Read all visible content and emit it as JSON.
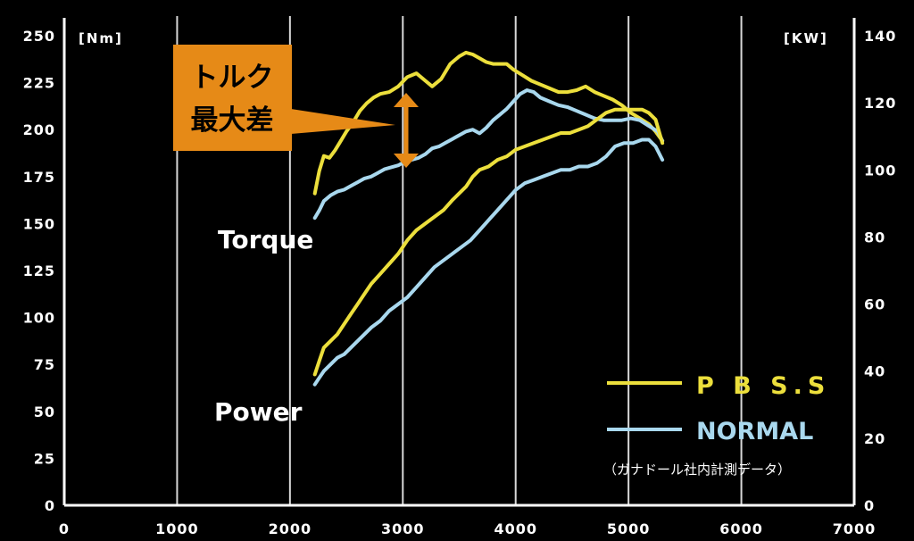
{
  "chart_data": {
    "type": "line",
    "x_ticks": [
      "0",
      "1000",
      "2000",
      "3000",
      "4000",
      "5000",
      "6000",
      "7000"
    ],
    "y_left_ticks": [
      "0",
      "25",
      "50",
      "75",
      "100",
      "125",
      "150",
      "175",
      "200",
      "225",
      "250"
    ],
    "y_right_ticks": [
      "0",
      "20",
      "40",
      "60",
      "80",
      "100",
      "120",
      "140"
    ],
    "y_left_unit": "[Nm]",
    "y_right_unit": "[KW]",
    "xlim": [
      0,
      7000
    ],
    "ylim_left": [
      0,
      250
    ],
    "ylim_right": [
      0,
      140
    ],
    "grid": "vertical",
    "legend_position": "bottom-right",
    "curve_labels": {
      "torque": "Torque",
      "power": "Power"
    },
    "callout": {
      "line1": "トルク",
      "line2": "最大差"
    },
    "note": "（ガナドール社内計測データ）",
    "series": [
      {
        "name": "P B S.S",
        "color": "#ecdf3c",
        "axis": "left",
        "group": "torque",
        "x": [
          2220,
          2260,
          2300,
          2350,
          2400,
          2450,
          2500,
          2560,
          2620,
          2680,
          2740,
          2800,
          2880,
          2960,
          3040,
          3120,
          3200,
          3260,
          3340,
          3420,
          3500,
          3560,
          3620,
          3680,
          3740,
          3800,
          3860,
          3920,
          3980,
          4060,
          4140,
          4220,
          4300,
          4380,
          4460,
          4540,
          4620,
          4700,
          4780,
          4860,
          4940,
          5020,
          5100,
          5180,
          5240,
          5300
        ],
        "y": [
          166,
          178,
          186,
          185,
          189,
          194,
          199,
          204,
          210,
          214,
          217,
          219,
          220,
          223,
          228,
          230,
          226,
          223,
          227,
          235,
          239,
          241,
          240,
          238,
          236,
          235,
          235,
          235,
          232,
          229,
          226,
          224,
          222,
          220,
          220,
          221,
          223,
          220,
          218,
          216,
          213,
          209,
          206,
          203,
          199,
          194
        ]
      },
      {
        "name": "NORMAL",
        "color": "#a9d8ee",
        "axis": "left",
        "group": "torque",
        "x": [
          2220,
          2260,
          2300,
          2360,
          2420,
          2480,
          2540,
          2600,
          2660,
          2720,
          2780,
          2840,
          2900,
          2960,
          3020,
          3080,
          3140,
          3200,
          3260,
          3320,
          3380,
          3440,
          3500,
          3560,
          3620,
          3680,
          3740,
          3800,
          3860,
          3920,
          3980,
          4040,
          4100,
          4160,
          4220,
          4300,
          4380,
          4460,
          4540,
          4620,
          4700,
          4780,
          4860,
          4940,
          5020,
          5100,
          5180,
          5260,
          5300
        ],
        "y": [
          153,
          157,
          162,
          165,
          167,
          168,
          170,
          172,
          174,
          175,
          177,
          179,
          180,
          181,
          183,
          184,
          185,
          187,
          190,
          191,
          193,
          195,
          197,
          199,
          200,
          198,
          201,
          205,
          208,
          211,
          215,
          219,
          221,
          220,
          217,
          215,
          213,
          212,
          210,
          208,
          206,
          205,
          205,
          205,
          206,
          205,
          202,
          199,
          194
        ]
      },
      {
        "name": "P B S.S",
        "color": "#ecdf3c",
        "axis": "right",
        "group": "power",
        "x": [
          2220,
          2260,
          2300,
          2360,
          2420,
          2480,
          2540,
          2600,
          2660,
          2720,
          2800,
          2880,
          2960,
          3040,
          3120,
          3200,
          3280,
          3360,
          3440,
          3500,
          3560,
          3620,
          3680,
          3760,
          3840,
          3920,
          4000,
          4080,
          4160,
          4240,
          4320,
          4400,
          4480,
          4560,
          4640,
          4720,
          4800,
          4880,
          4960,
          5040,
          5120,
          5180,
          5240,
          5300
        ],
        "y": [
          39,
          43,
          47,
          49,
          51,
          54,
          57,
          60,
          63,
          66,
          69,
          72,
          75,
          79,
          82,
          84,
          86,
          88,
          91,
          93,
          95,
          98,
          100,
          101,
          103,
          104,
          106,
          107,
          108,
          109,
          110,
          111,
          111,
          112,
          113,
          115,
          117,
          118,
          118,
          118,
          118,
          117,
          115,
          108
        ]
      },
      {
        "name": "NORMAL",
        "color": "#a9d8ee",
        "axis": "right",
        "group": "power",
        "x": [
          2220,
          2260,
          2300,
          2360,
          2420,
          2480,
          2540,
          2600,
          2660,
          2720,
          2800,
          2880,
          2960,
          3040,
          3120,
          3200,
          3280,
          3360,
          3440,
          3520,
          3600,
          3680,
          3760,
          3840,
          3920,
          4000,
          4080,
          4160,
          4240,
          4320,
          4400,
          4480,
          4560,
          4640,
          4720,
          4800,
          4880,
          4960,
          5040,
          5120,
          5180,
          5240,
          5300
        ],
        "y": [
          36,
          38,
          40,
          42,
          44,
          45,
          47,
          49,
          51,
          53,
          55,
          58,
          60,
          62,
          65,
          68,
          71,
          73,
          75,
          77,
          79,
          82,
          85,
          88,
          91,
          94,
          96,
          97,
          98,
          99,
          100,
          100,
          101,
          101,
          102,
          104,
          107,
          108,
          108,
          109,
          109,
          107,
          103
        ]
      }
    ]
  }
}
